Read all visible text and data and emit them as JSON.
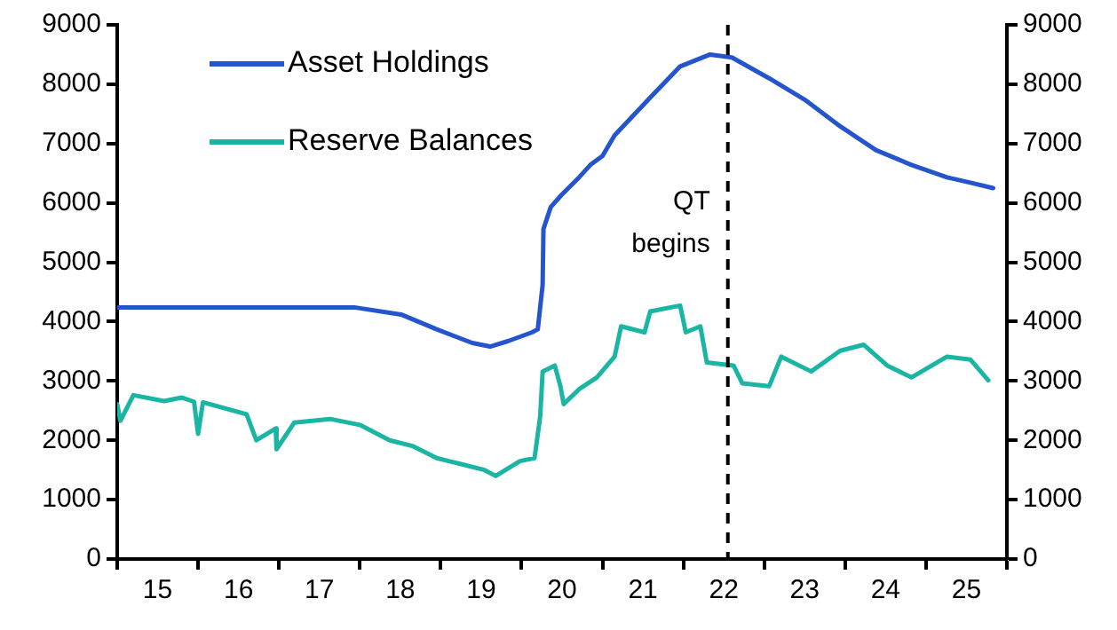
{
  "chart_data": {
    "type": "line",
    "xlim": [
      15,
      26
    ],
    "xticks": [
      {
        "value": 15,
        "label": null
      },
      {
        "value": 15.5,
        "label": "15"
      },
      {
        "value": 16,
        "label": null
      },
      {
        "value": 16.5,
        "label": "16"
      },
      {
        "value": 17,
        "label": null
      },
      {
        "value": 17.5,
        "label": "17"
      },
      {
        "value": 18,
        "label": null
      },
      {
        "value": 18.5,
        "label": "18"
      },
      {
        "value": 19,
        "label": null
      },
      {
        "value": 19.5,
        "label": "19"
      },
      {
        "value": 20,
        "label": null
      },
      {
        "value": 20.5,
        "label": "20"
      },
      {
        "value": 21,
        "label": null
      },
      {
        "value": 21.5,
        "label": "21"
      },
      {
        "value": 22,
        "label": null
      },
      {
        "value": 22.5,
        "label": "22"
      },
      {
        "value": 23,
        "label": null
      },
      {
        "value": 23.5,
        "label": "23"
      },
      {
        "value": 24,
        "label": null
      },
      {
        "value": 24.5,
        "label": "24"
      },
      {
        "value": 25,
        "label": null
      },
      {
        "value": 25.5,
        "label": "25"
      },
      {
        "value": 26,
        "label": null
      }
    ],
    "ylim": [
      0,
      9000
    ],
    "yticks": [
      0,
      1000,
      2000,
      3000,
      4000,
      5000,
      6000,
      7000,
      8000,
      9000
    ],
    "y2lim": [
      0,
      9000
    ],
    "y2ticks": [
      0,
      1000,
      2000,
      3000,
      4000,
      5000,
      6000,
      7000,
      8000,
      9000
    ],
    "legend": "top left",
    "grid": false,
    "marker": "none",
    "line_style": "solid",
    "ref_lines": [
      {
        "axis": "x",
        "value": 22.55,
        "label": "QT begins",
        "line_style": "dashed",
        "color": "#000000"
      }
    ],
    "series": [
      {
        "name": "Asset Holdings",
        "color": "#2455cc",
        "x": [
          15,
          17.93,
          18.51,
          18.95,
          19.39,
          19.61,
          19.83,
          20.13,
          20.2,
          20.26,
          20.27,
          20.36,
          20.49,
          20.71,
          20.85,
          21.0,
          21.15,
          21.6,
          21.96,
          22.33,
          22.6,
          23.06,
          23.5,
          23.94,
          24.38,
          24.82,
          25.26,
          25.55,
          25.83
        ],
        "values": [
          4240,
          4240,
          4120,
          3870,
          3640,
          3580,
          3670,
          3820,
          3870,
          4620,
          5560,
          5930,
          6130,
          6430,
          6640,
          6790,
          7140,
          7790,
          8300,
          8500,
          8450,
          8100,
          7740,
          7290,
          6890,
          6640,
          6430,
          6340,
          6250
        ]
      },
      {
        "name": "Reserve Balances",
        "color": "#1ab5a3",
        "x": [
          15,
          15.04,
          15.2,
          15.58,
          15.8,
          15.95,
          16.0,
          16.06,
          16.6,
          16.72,
          16.96,
          16.97,
          17.19,
          17.63,
          18.0,
          18.37,
          18.66,
          18.95,
          19.25,
          19.54,
          19.68,
          19.98,
          20.16,
          20.23,
          20.26,
          20.41,
          20.48,
          20.52,
          20.71,
          20.93,
          21.15,
          21.23,
          21.52,
          21.59,
          21.96,
          22.03,
          22.21,
          22.29,
          22.62,
          22.73,
          23.06,
          23.21,
          23.58,
          23.94,
          24.23,
          24.52,
          24.82,
          25.26,
          25.55,
          25.77
        ],
        "values": [
          2610,
          2330,
          2760,
          2660,
          2720,
          2650,
          2110,
          2640,
          2440,
          2000,
          2200,
          1850,
          2300,
          2360,
          2260,
          2000,
          1900,
          1700,
          1600,
          1500,
          1400,
          1650,
          1700,
          2410,
          3160,
          3260,
          2910,
          2610,
          2860,
          3060,
          3410,
          3920,
          3820,
          4170,
          4270,
          3820,
          3920,
          3310,
          3260,
          2960,
          2910,
          3410,
          3160,
          3510,
          3610,
          3260,
          3060,
          3410,
          3360,
          3010
        ]
      }
    ]
  }
}
